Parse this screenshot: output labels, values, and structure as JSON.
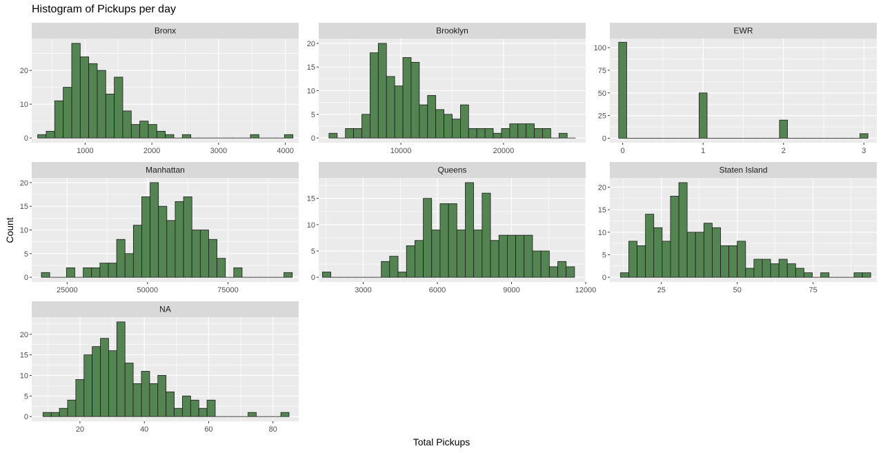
{
  "title": "Histogram of Pickups per day",
  "xlabel": "Total Pickups",
  "ylabel": "Count",
  "colors": {
    "bar_fill": "#548451",
    "bar_stroke": "#1a1a1a",
    "panel_bg": "#ebebeb",
    "strip_bg": "#d9d9d9",
    "grid": "#ffffff",
    "tick_text": "#4d4d4d"
  },
  "chart_data": [
    {
      "type": "bar",
      "facet": "Bronx",
      "xlim": [
        200,
        4200
      ],
      "ylim": [
        -1.4,
        29.4
      ],
      "xticks": [
        1000,
        2000,
        3000,
        4000
      ],
      "yticks": [
        0,
        10,
        20
      ],
      "bins": {
        "start": 289,
        "width": 127.5
      },
      "values": [
        1,
        2,
        11,
        15,
        28,
        24,
        22,
        20,
        13,
        18,
        8,
        4,
        5,
        4,
        2,
        1,
        0,
        1,
        0,
        0,
        0,
        0,
        0,
        0,
        0,
        1,
        0,
        0,
        0,
        1
      ]
    },
    {
      "type": "bar",
      "facet": "Brooklyn",
      "xlim": [
        2000,
        28000
      ],
      "ylim": [
        -1,
        21
      ],
      "xticks": [
        10000,
        20000
      ],
      "yticks": [
        0,
        5,
        10,
        15,
        20
      ],
      "bins": {
        "start": 3000,
        "width": 800
      },
      "values": [
        1,
        0,
        2,
        2,
        5,
        18,
        20,
        13,
        11,
        17,
        16,
        7,
        9,
        6,
        5,
        4,
        7,
        2,
        2,
        2,
        1,
        2,
        3,
        3,
        3,
        2,
        2,
        0,
        1,
        0
      ]
    },
    {
      "type": "bar",
      "facet": "EWR",
      "xlim": [
        -0.16,
        3.16
      ],
      "ylim": [
        -5,
        110
      ],
      "xticks": [
        0,
        1,
        2,
        3
      ],
      "yticks": [
        0,
        25,
        50,
        75,
        100
      ],
      "bins": {
        "start": -0.05,
        "width": 0.1
      },
      "values": [
        106,
        0,
        0,
        0,
        0,
        0,
        0,
        0,
        0,
        0,
        50,
        0,
        0,
        0,
        0,
        0,
        0,
        0,
        0,
        0,
        20,
        0,
        0,
        0,
        0,
        0,
        0,
        0,
        0,
        0,
        5
      ]
    },
    {
      "type": "bar",
      "facet": "Manhattan",
      "xlim": [
        14000,
        97000
      ],
      "ylim": [
        -1,
        21
      ],
      "xticks": [
        25000,
        50000,
        75000
      ],
      "yticks": [
        0,
        5,
        10,
        15,
        20
      ],
      "bins": {
        "start": 17000,
        "width": 2600
      },
      "values": [
        1,
        0,
        0,
        2,
        0,
        2,
        2,
        3,
        3,
        8,
        5,
        11,
        17,
        20,
        15,
        12,
        16,
        17,
        10,
        10,
        8,
        4,
        0,
        2,
        0,
        0,
        0,
        0,
        0,
        1
      ]
    },
    {
      "type": "bar",
      "facet": "Queens",
      "xlim": [
        1200,
        12000
      ],
      "ylim": [
        -0.9,
        18.9
      ],
      "xticks": [
        3000,
        6000,
        9000,
        12000
      ],
      "yticks": [
        0,
        5,
        10,
        15
      ],
      "bins": {
        "start": 1350,
        "width": 340
      },
      "values": [
        1,
        0,
        0,
        0,
        0,
        0,
        0,
        3,
        4,
        1,
        6,
        7,
        15,
        9,
        14,
        14,
        9,
        18,
        9,
        16,
        7,
        8,
        8,
        8,
        8,
        5,
        5,
        2,
        3,
        2
      ]
    },
    {
      "type": "bar",
      "facet": "Staten Island",
      "xlim": [
        8,
        96
      ],
      "ylim": [
        -1.05,
        22.05
      ],
      "xticks": [
        25,
        50,
        75
      ],
      "yticks": [
        0,
        5,
        10,
        15,
        20
      ],
      "bins": {
        "start": 11.5,
        "width": 2.75
      },
      "values": [
        1,
        8,
        7,
        14,
        11,
        8,
        18,
        21,
        10,
        10,
        12,
        11,
        7,
        7,
        8,
        2,
        4,
        4,
        3,
        4,
        3,
        2,
        1,
        0,
        1,
        0,
        0,
        0,
        1,
        1
      ]
    },
    {
      "type": "bar",
      "facet": "NA",
      "xlim": [
        5,
        88
      ],
      "ylim": [
        -1.15,
        24.15
      ],
      "xticks": [
        20,
        40,
        60,
        80
      ],
      "yticks": [
        0,
        5,
        10,
        15,
        20
      ],
      "bins": {
        "start": 8.5,
        "width": 2.55
      },
      "values": [
        1,
        1,
        2,
        4,
        9,
        15,
        17,
        19,
        16,
        23,
        13,
        8,
        11,
        8,
        10,
        6,
        2,
        5,
        4,
        2,
        4,
        0,
        0,
        0,
        0,
        1,
        0,
        0,
        0,
        1
      ]
    }
  ]
}
